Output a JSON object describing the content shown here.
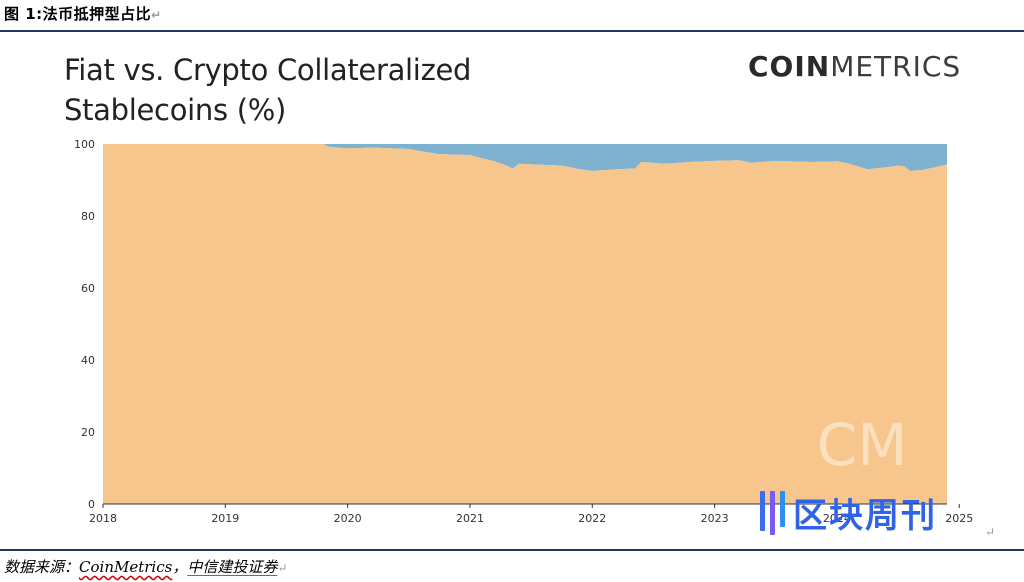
{
  "figure": {
    "caption": "图 1:法币抵押型占比",
    "source_prefix": "数据来源：",
    "source_name": "CoinMetrics",
    "source_sep": "，",
    "source_org": "中信建投证券"
  },
  "chart_meta": {
    "logo_bold": "COIN",
    "logo_light": "METRICS",
    "watermark_text": "区块周刊",
    "cm_watermark": "CM"
  },
  "colors": {
    "fiat": "#f7c68c",
    "crypto": "#7fb2cf",
    "axis": "#333333",
    "rule": "#1f3864"
  },
  "chart_data": {
    "type": "area",
    "title": "Fiat vs. Crypto Collateralized Stablecoins (%)",
    "title_lines": [
      "Fiat vs. Crypto Collateralized",
      "Stablecoins (%)"
    ],
    "xlabel": "",
    "ylabel": "",
    "stacked": true,
    "xlim": [
      2018.0,
      2024.9
    ],
    "ylim": [
      0,
      100
    ],
    "yticks": [
      0,
      20,
      40,
      60,
      80,
      100
    ],
    "xticks": [
      "2018",
      "2019",
      "2020",
      "2021",
      "2022",
      "2023",
      "2024",
      "2025"
    ],
    "grid": false,
    "legend": "none",
    "x": [
      2018.0,
      2018.5,
      2019.0,
      2019.5,
      2019.8,
      2019.85,
      2020.0,
      2020.2,
      2020.5,
      2020.6,
      2020.75,
      2021.0,
      2021.1,
      2021.2,
      2021.3,
      2021.35,
      2021.4,
      2021.6,
      2021.75,
      2021.9,
      2022.0,
      2022.2,
      2022.35,
      2022.4,
      2022.6,
      2022.8,
      2023.0,
      2023.2,
      2023.3,
      2023.5,
      2023.8,
      2024.0,
      2024.1,
      2024.25,
      2024.4,
      2024.5,
      2024.55,
      2024.6,
      2024.7,
      2024.8,
      2024.9
    ],
    "series": [
      {
        "values": [
          100,
          100,
          100,
          100,
          100,
          99.2,
          98.8,
          99.0,
          98.6,
          98.0,
          97.2,
          96.9,
          96.0,
          95.2,
          94.0,
          93.2,
          94.5,
          94.2,
          94.0,
          93.0,
          92.5,
          93.0,
          93.2,
          95.0,
          94.5,
          95.0,
          95.3,
          95.5,
          94.8,
          95.3,
          95.0,
          95.2,
          94.5,
          93.0,
          93.5,
          94.0,
          93.8,
          92.5,
          92.8,
          93.5,
          94.3
        ]
      },
      {
        "values": [
          0,
          0,
          0,
          0,
          0,
          0.8,
          1.2,
          1.0,
          1.4,
          2.0,
          2.8,
          3.1,
          4.0,
          4.8,
          6.0,
          6.8,
          5.5,
          5.8,
          6.0,
          7.0,
          7.5,
          7.0,
          6.8,
          5.0,
          5.5,
          5.0,
          4.7,
          4.5,
          5.2,
          4.7,
          5.0,
          4.8,
          5.5,
          7.0,
          6.5,
          6.0,
          6.2,
          7.5,
          7.2,
          6.5,
          5.7
        ]
      }
    ]
  }
}
